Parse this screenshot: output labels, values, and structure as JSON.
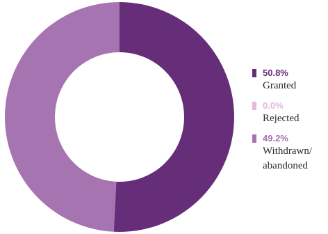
{
  "chart_data": {
    "type": "pie",
    "variant": "donut",
    "slices": [
      {
        "label": "Granted",
        "value_label": "50.8%",
        "value": 50.8,
        "color": "#662d78"
      },
      {
        "label": "Rejected",
        "value_label": "0.0%",
        "value": 0.0,
        "color": "#e3b8dc"
      },
      {
        "label": "Withdrawn/ abandoned",
        "value_label": "49.2%",
        "value": 49.2,
        "color": "#a674b0"
      }
    ],
    "legend_position": "right",
    "start_angle": "top, clockwise"
  }
}
